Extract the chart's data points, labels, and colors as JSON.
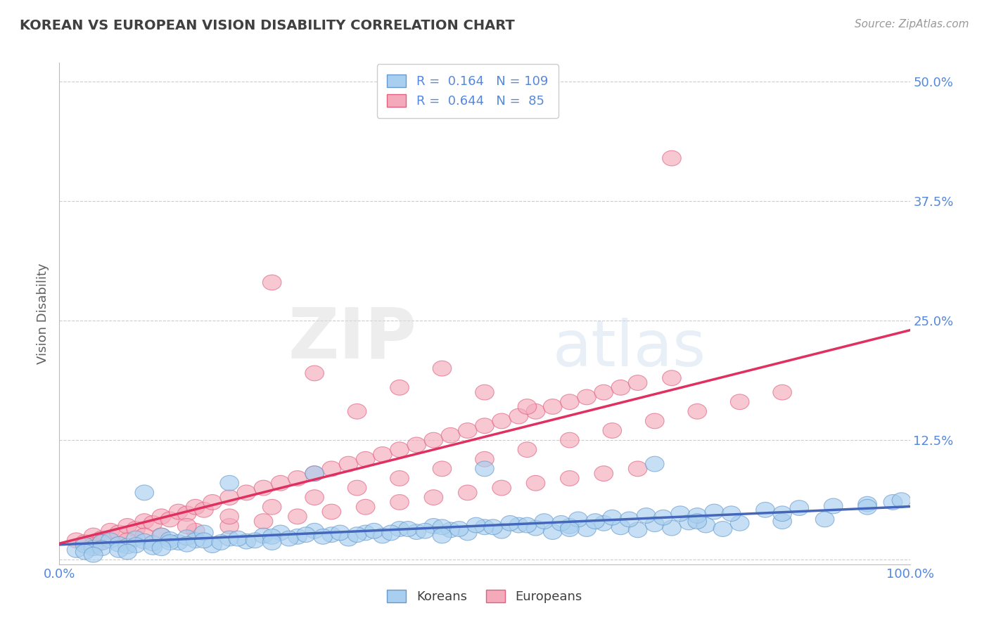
{
  "title": "KOREAN VS EUROPEAN VISION DISABILITY CORRELATION CHART",
  "source": "Source: ZipAtlas.com",
  "ylabel": "Vision Disability",
  "xlim": [
    0.0,
    1.0
  ],
  "ylim": [
    -0.005,
    0.52
  ],
  "yticks": [
    0.0,
    0.125,
    0.25,
    0.375,
    0.5
  ],
  "ytick_labels": [
    "",
    "12.5%",
    "25.0%",
    "37.5%",
    "50.0%"
  ],
  "xtick_labels": [
    "0.0%",
    "100.0%"
  ],
  "korean_color": "#A8CFEF",
  "european_color": "#F4AABB",
  "korean_edge_color": "#6699CC",
  "european_edge_color": "#E06080",
  "korean_line_color": "#4466BB",
  "european_line_color": "#E03060",
  "korean_R": 0.164,
  "korean_N": 109,
  "european_R": 0.644,
  "european_N": 85,
  "background_color": "#FFFFFF",
  "grid_color": "#CCCCCC",
  "title_color": "#404040",
  "axis_color": "#5588DD",
  "legend_korean": "Koreans",
  "legend_european": "Europeans",
  "korean_points_x": [
    0.02,
    0.03,
    0.04,
    0.05,
    0.06,
    0.07,
    0.08,
    0.09,
    0.1,
    0.11,
    0.12,
    0.13,
    0.14,
    0.15,
    0.16,
    0.17,
    0.18,
    0.2,
    0.22,
    0.24,
    0.26,
    0.28,
    0.3,
    0.32,
    0.34,
    0.36,
    0.38,
    0.4,
    0.42,
    0.44,
    0.46,
    0.48,
    0.5,
    0.52,
    0.54,
    0.56,
    0.58,
    0.6,
    0.62,
    0.64,
    0.66,
    0.68,
    0.7,
    0.72,
    0.74,
    0.76,
    0.78,
    0.8,
    0.85,
    0.9,
    0.03,
    0.05,
    0.07,
    0.09,
    0.11,
    0.13,
    0.15,
    0.17,
    0.19,
    0.21,
    0.23,
    0.25,
    0.27,
    0.29,
    0.31,
    0.33,
    0.35,
    0.37,
    0.39,
    0.41,
    0.43,
    0.45,
    0.47,
    0.49,
    0.51,
    0.53,
    0.55,
    0.57,
    0.59,
    0.61,
    0.63,
    0.65,
    0.67,
    0.69,
    0.71,
    0.73,
    0.75,
    0.77,
    0.79,
    0.83,
    0.87,
    0.91,
    0.95,
    0.98,
    0.99,
    0.1,
    0.2,
    0.3,
    0.5,
    0.7,
    0.04,
    0.08,
    0.12,
    0.25,
    0.45,
    0.6,
    0.75,
    0.85,
    0.95
  ],
  "korean_points_y": [
    0.01,
    0.015,
    0.012,
    0.018,
    0.02,
    0.016,
    0.014,
    0.022,
    0.019,
    0.017,
    0.025,
    0.021,
    0.018,
    0.023,
    0.02,
    0.028,
    0.015,
    0.022,
    0.019,
    0.025,
    0.028,
    0.024,
    0.03,
    0.026,
    0.022,
    0.028,
    0.025,
    0.032,
    0.029,
    0.035,
    0.031,
    0.028,
    0.034,
    0.03,
    0.036,
    0.033,
    0.029,
    0.035,
    0.032,
    0.038,
    0.034,
    0.031,
    0.037,
    0.033,
    0.039,
    0.036,
    0.032,
    0.038,
    0.04,
    0.042,
    0.008,
    0.012,
    0.01,
    0.015,
    0.013,
    0.018,
    0.016,
    0.02,
    0.018,
    0.022,
    0.02,
    0.024,
    0.022,
    0.026,
    0.024,
    0.028,
    0.026,
    0.03,
    0.028,
    0.032,
    0.03,
    0.034,
    0.032,
    0.036,
    0.034,
    0.038,
    0.036,
    0.04,
    0.038,
    0.042,
    0.04,
    0.044,
    0.042,
    0.046,
    0.044,
    0.048,
    0.046,
    0.05,
    0.048,
    0.052,
    0.054,
    0.056,
    0.058,
    0.06,
    0.062,
    0.07,
    0.08,
    0.09,
    0.095,
    0.1,
    0.005,
    0.008,
    0.012,
    0.018,
    0.025,
    0.032,
    0.04,
    0.048,
    0.055
  ],
  "european_points_x": [
    0.02,
    0.03,
    0.04,
    0.05,
    0.06,
    0.07,
    0.08,
    0.09,
    0.1,
    0.11,
    0.12,
    0.13,
    0.14,
    0.15,
    0.16,
    0.17,
    0.18,
    0.2,
    0.22,
    0.24,
    0.26,
    0.28,
    0.3,
    0.32,
    0.34,
    0.36,
    0.38,
    0.4,
    0.42,
    0.44,
    0.46,
    0.48,
    0.5,
    0.52,
    0.54,
    0.56,
    0.58,
    0.6,
    0.62,
    0.64,
    0.66,
    0.68,
    0.72,
    0.04,
    0.08,
    0.12,
    0.16,
    0.2,
    0.24,
    0.28,
    0.32,
    0.36,
    0.4,
    0.44,
    0.48,
    0.52,
    0.56,
    0.6,
    0.64,
    0.68,
    0.05,
    0.1,
    0.15,
    0.2,
    0.25,
    0.3,
    0.35,
    0.4,
    0.45,
    0.5,
    0.55,
    0.6,
    0.65,
    0.7,
    0.75,
    0.8,
    0.85,
    0.25,
    0.3,
    0.35,
    0.4,
    0.45,
    0.5,
    0.55,
    0.72
  ],
  "european_points_y": [
    0.02,
    0.018,
    0.025,
    0.022,
    0.03,
    0.028,
    0.035,
    0.032,
    0.04,
    0.038,
    0.045,
    0.042,
    0.05,
    0.048,
    0.055,
    0.052,
    0.06,
    0.065,
    0.07,
    0.075,
    0.08,
    0.085,
    0.09,
    0.095,
    0.1,
    0.105,
    0.11,
    0.115,
    0.12,
    0.125,
    0.13,
    0.135,
    0.14,
    0.145,
    0.15,
    0.155,
    0.16,
    0.165,
    0.17,
    0.175,
    0.18,
    0.185,
    0.42,
    0.015,
    0.02,
    0.025,
    0.03,
    0.035,
    0.04,
    0.045,
    0.05,
    0.055,
    0.06,
    0.065,
    0.07,
    0.075,
    0.08,
    0.085,
    0.09,
    0.095,
    0.018,
    0.025,
    0.035,
    0.045,
    0.055,
    0.065,
    0.075,
    0.085,
    0.095,
    0.105,
    0.115,
    0.125,
    0.135,
    0.145,
    0.155,
    0.165,
    0.175,
    0.29,
    0.195,
    0.155,
    0.18,
    0.2,
    0.175,
    0.16,
    0.19
  ]
}
